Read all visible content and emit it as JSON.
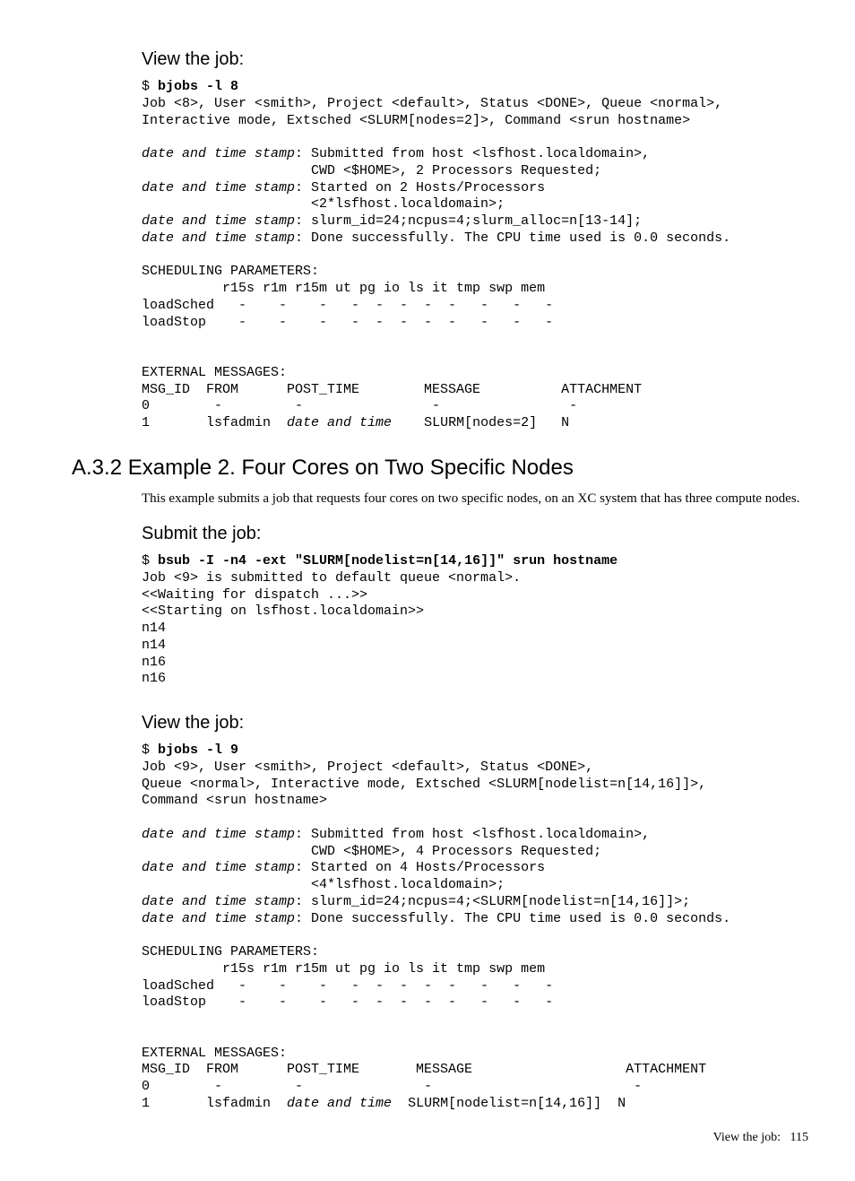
{
  "view1_head": "View the job:",
  "view1_code": "$ <b>bjobs -l 8</b>\nJob <8>, User <smith>, Project <default>, Status <DONE>, Queue <normal>,\nInteractive mode, Extsched <SLURM[nodes=2]>, Command <srun hostname>\n\n<i>date and time stamp</i>: Submitted from host <lsfhost.localdomain>,\n                     CWD <$HOME>, 2 Processors Requested;\n<i>date and time stamp</i>: Started on 2 Hosts/Processors\n                     <2*lsfhost.localdomain>;\n<i>date and time stamp</i>: slurm_id=24;ncpus=4;slurm_alloc=n[13-14];\n<i>date and time stamp</i>: Done successfully. The CPU time used is 0.0 seconds.\n\nSCHEDULING PARAMETERS:\n          r15s r1m r15m ut pg io ls it tmp swp mem\nloadSched   -    -    -   -  -  -  -  -   -   -   -\nloadStop    -    -    -   -  -  -  -  -   -   -   -\n\n\nEXTERNAL MESSAGES:\nMSG_ID  FROM      POST_TIME        MESSAGE          ATTACHMENT\n0        -         -                -                -\n1       lsfadmin  <i>date and time</i>    SLURM[nodes=2]   N",
  "section_num": "A.3.2",
  "section_title": "Example 2. Four Cores on Two Specific Nodes",
  "section_para": "This example submits a job that requests four cores on two specific nodes, on an XC system that has three compute nodes.",
  "submit_head": "Submit the job:",
  "submit_code": "$ <b>bsub -I -n4 -ext \"SLURM[nodelist=n[14,16]]\" srun hostname</b>\nJob <9> is submitted to default queue <normal>.\n<<Waiting for dispatch ...>>\n<<Starting on lsfhost.localdomain>>\nn14\nn14\nn16\nn16",
  "view2_head": "View the job:",
  "view2_code": "$ <b>bjobs -l 9</b>\nJob <9>, User <smith>, Project <default>, Status <DONE>,\nQueue <normal>, Interactive mode, Extsched <SLURM[nodelist=n[14,16]]>,\nCommand <srun hostname>\n\n<i>date and time stamp</i>: Submitted from host <lsfhost.localdomain>,\n                     CWD <$HOME>, 4 Processors Requested;\n<i>date and time stamp</i>: Started on 4 Hosts/Processors\n                     <4*lsfhost.localdomain>;\n<i>date and time stamp</i>: slurm_id=24;ncpus=4;<SLURM[nodelist=n[14,16]]>;\n<i>date and time stamp</i>: Done successfully. The CPU time used is 0.0 seconds.\n\nSCHEDULING PARAMETERS:\n          r15s r1m r15m ut pg io ls it tmp swp mem\nloadSched   -    -    -   -  -  -  -  -   -   -   -\nloadStop    -    -    -   -  -  -  -  -   -   -   -\n\n\nEXTERNAL MESSAGES:\nMSG_ID  FROM      POST_TIME       MESSAGE                   ATTACHMENT\n0        -         -               -                         -\n1       lsfadmin  <i>date and time</i>  SLURM[nodelist=n[14,16]]  N",
  "footer_left": "View the job:",
  "footer_page": "115"
}
